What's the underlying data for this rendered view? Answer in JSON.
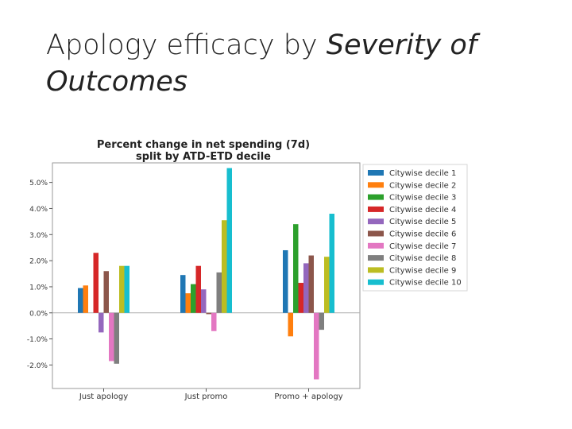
{
  "slide": {
    "title_plain": "Apology efficacy by ",
    "title_italic": "Severity of Outcomes"
  },
  "chart_data": {
    "type": "bar",
    "title_line1": "Percent change in net spending (7d)",
    "title_line2": "split by ATD-ETD decile",
    "xlabel": "",
    "ylabel": "",
    "ylim": [
      -2.9,
      5.75
    ],
    "yticks": [
      -2.0,
      -1.0,
      0.0,
      1.0,
      2.0,
      3.0,
      4.0,
      5.0
    ],
    "ytick_labels": [
      "-2.0%",
      "-1.0%",
      "0.0%",
      "1.0%",
      "2.0%",
      "3.0%",
      "4.0%",
      "5.0%"
    ],
    "categories": [
      "Just apology",
      "Just promo",
      "Promo + apology"
    ],
    "legend_position": "outside-right",
    "series": [
      {
        "name": "Citywise decile 1",
        "color": "#1f77b4",
        "values": [
          0.95,
          1.45,
          2.4
        ]
      },
      {
        "name": "Citywise decile 2",
        "color": "#ff7f0e",
        "values": [
          1.05,
          0.75,
          -0.9
        ]
      },
      {
        "name": "Citywise decile 3",
        "color": "#2ca02c",
        "values": [
          0.0,
          1.1,
          3.4
        ]
      },
      {
        "name": "Citywise decile 4",
        "color": "#d62728",
        "values": [
          2.3,
          1.8,
          1.15
        ]
      },
      {
        "name": "Citywise decile 5",
        "color": "#9467bd",
        "values": [
          -0.75,
          0.9,
          1.9
        ]
      },
      {
        "name": "Citywise decile 6",
        "color": "#8c564b",
        "values": [
          1.6,
          -0.05,
          2.2
        ]
      },
      {
        "name": "Citywise decile 7",
        "color": "#e377c2",
        "values": [
          -1.85,
          -0.7,
          -2.55
        ]
      },
      {
        "name": "Citywise decile 8",
        "color": "#7f7f7f",
        "values": [
          -1.95,
          1.55,
          -0.65
        ]
      },
      {
        "name": "Citywise decile 9",
        "color": "#bcbd22",
        "values": [
          1.8,
          3.55,
          2.15
        ]
      },
      {
        "name": "Citywise decile 10",
        "color": "#17becf",
        "values": [
          1.8,
          5.55,
          3.8
        ]
      }
    ]
  }
}
